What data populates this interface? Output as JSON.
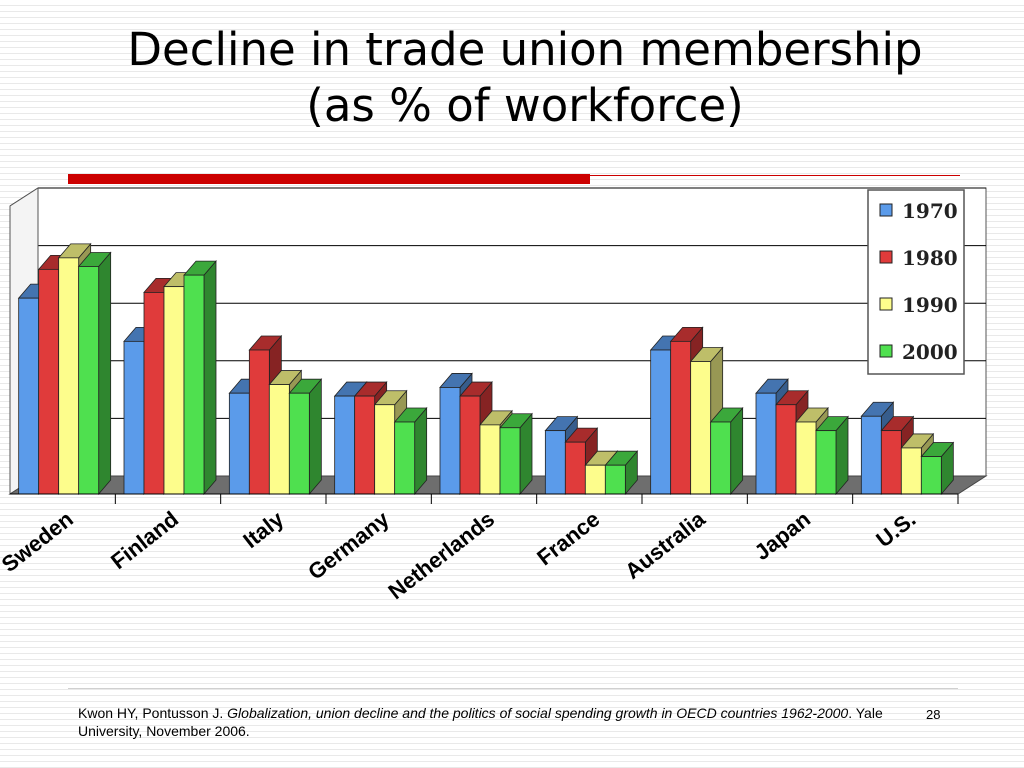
{
  "slide": {
    "title_line1": "Decline in trade union membership",
    "title_line2": "(as % of workforce)",
    "citation_authors": "Kwon HY, Pontusson J. ",
    "citation_title": "Globalization, union decline and the politics of social spending growth in OECD countries 1962-2000",
    "citation_rest": ". Yale University, November 2006.",
    "page_number": "28"
  },
  "colors": {
    "accent_red": "#cc0000",
    "series_1970": "#5b9bea",
    "series_1980": "#e03b3b",
    "series_1990": "#fdfd8c",
    "series_2000": "#4fe04f"
  },
  "chart_data": {
    "type": "bar",
    "ylabel": "%",
    "ylim": [
      0,
      100
    ],
    "grid": true,
    "legend": "top-right",
    "categories": [
      "Sweden",
      "Finland",
      "Italy",
      "Germany",
      "Netherlands",
      "France",
      "Australia",
      "Japan",
      "U.S."
    ],
    "series": [
      {
        "name": "1970",
        "color": "#5b9bea",
        "values": [
          68,
          53,
          35,
          34,
          37,
          22,
          50,
          35,
          27
        ]
      },
      {
        "name": "1980",
        "color": "#e03b3b",
        "values": [
          78,
          70,
          50,
          34,
          34,
          18,
          53,
          31,
          22
        ]
      },
      {
        "name": "1990",
        "color": "#fdfd8c",
        "values": [
          82,
          72,
          38,
          31,
          24,
          10,
          46,
          25,
          16
        ]
      },
      {
        "name": "2000",
        "color": "#4fe04f",
        "values": [
          79,
          76,
          35,
          25,
          23,
          10,
          25,
          22,
          13
        ]
      }
    ]
  }
}
